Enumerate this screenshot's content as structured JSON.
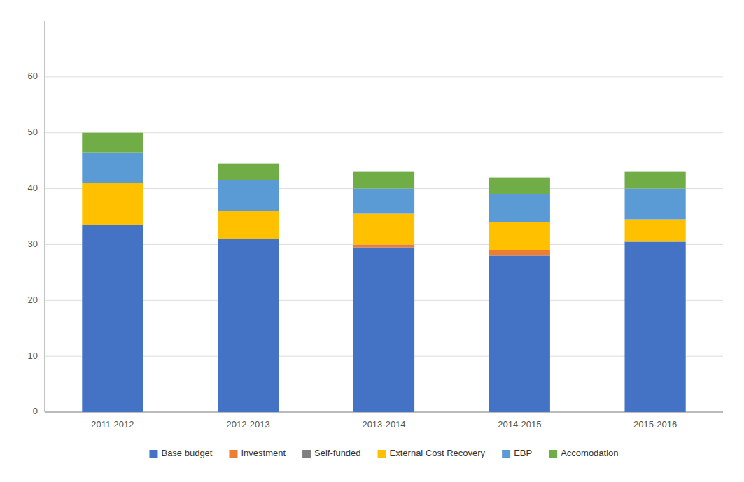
{
  "chart_data": {
    "type": "bar",
    "stacked": true,
    "categories": [
      "2011-2012",
      "2012-2013",
      "2013-2014",
      "2014-2015",
      "2015-2016"
    ],
    "series": [
      {
        "name": "Base budget",
        "color": "#4472C4",
        "values": [
          33.5,
          31.0,
          29.5,
          28.0,
          30.5
        ]
      },
      {
        "name": "Investment",
        "color": "#ED7D31",
        "values": [
          0.0,
          0.0,
          0.5,
          1.0,
          0.0
        ]
      },
      {
        "name": "Self-funded",
        "color": "#808080",
        "values": [
          0.0,
          0.0,
          0.0,
          0.0,
          0.0
        ]
      },
      {
        "name": "External Cost Recovery",
        "color": "#FFC000",
        "values": [
          7.5,
          5.0,
          5.5,
          5.0,
          4.0
        ]
      },
      {
        "name": "EBP",
        "color": "#5B9BD5",
        "values": [
          5.5,
          5.5,
          4.5,
          5.0,
          5.5
        ]
      },
      {
        "name": "Accomodation",
        "color": "#70AD47",
        "values": [
          3.5,
          3.0,
          3.0,
          3.0,
          3.0
        ]
      }
    ],
    "ylim": [
      0,
      70
    ],
    "yticks": [
      0,
      10,
      20,
      30,
      40,
      50,
      60
    ],
    "grid": true,
    "legend": "bottom"
  }
}
